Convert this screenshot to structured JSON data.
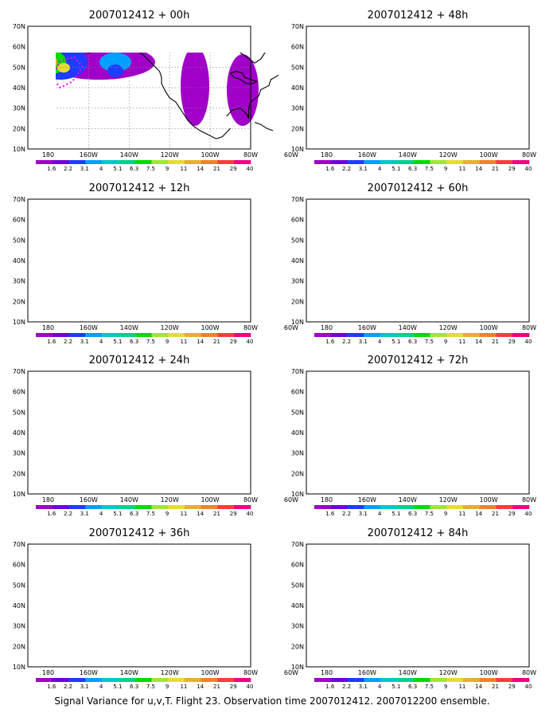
{
  "figure": {
    "caption": "Signal Variance for u,v,T. Flight 23. Observation time 2007012412. 2007012200 ensemble."
  },
  "panels": [
    {
      "title": "2007012412 + 00h"
    },
    {
      "title": "2007012412 + 48h"
    },
    {
      "title": "2007012412 + 12h"
    },
    {
      "title": "2007012412 + 60h"
    },
    {
      "title": "2007012412 + 24h"
    },
    {
      "title": "2007012412 + 72h"
    },
    {
      "title": "2007012412 + 36h"
    },
    {
      "title": "2007012412 + 84h"
    }
  ],
  "axes": {
    "lon_labels": [
      "180",
      "160W",
      "140W",
      "120W",
      "100W",
      "80W",
      "60W"
    ],
    "lat_labels": [
      "10N",
      "20N",
      "30N",
      "40N",
      "50N",
      "60N",
      "70N"
    ]
  },
  "colorbar": {
    "labels": [
      "1.6",
      "2.2",
      "3.1",
      "4",
      "5.1",
      "6.3",
      "7.5",
      "9",
      "11",
      "14",
      "21",
      "29",
      "40"
    ],
    "colors": [
      "#a000c8",
      "#6e00dc",
      "#1e3cff",
      "#00a0ff",
      "#00c8c8",
      "#00d28c",
      "#00dc00",
      "#a0e632",
      "#e6dc32",
      "#e6af2d",
      "#f08228",
      "#fa3c3c",
      "#f00082"
    ]
  },
  "colors": {
    "low": "#a000c8",
    "mid": "#00dc00",
    "high": "#f08228",
    "coast": "#000000",
    "grid": "#888888",
    "marker": "#ff00ff"
  }
}
